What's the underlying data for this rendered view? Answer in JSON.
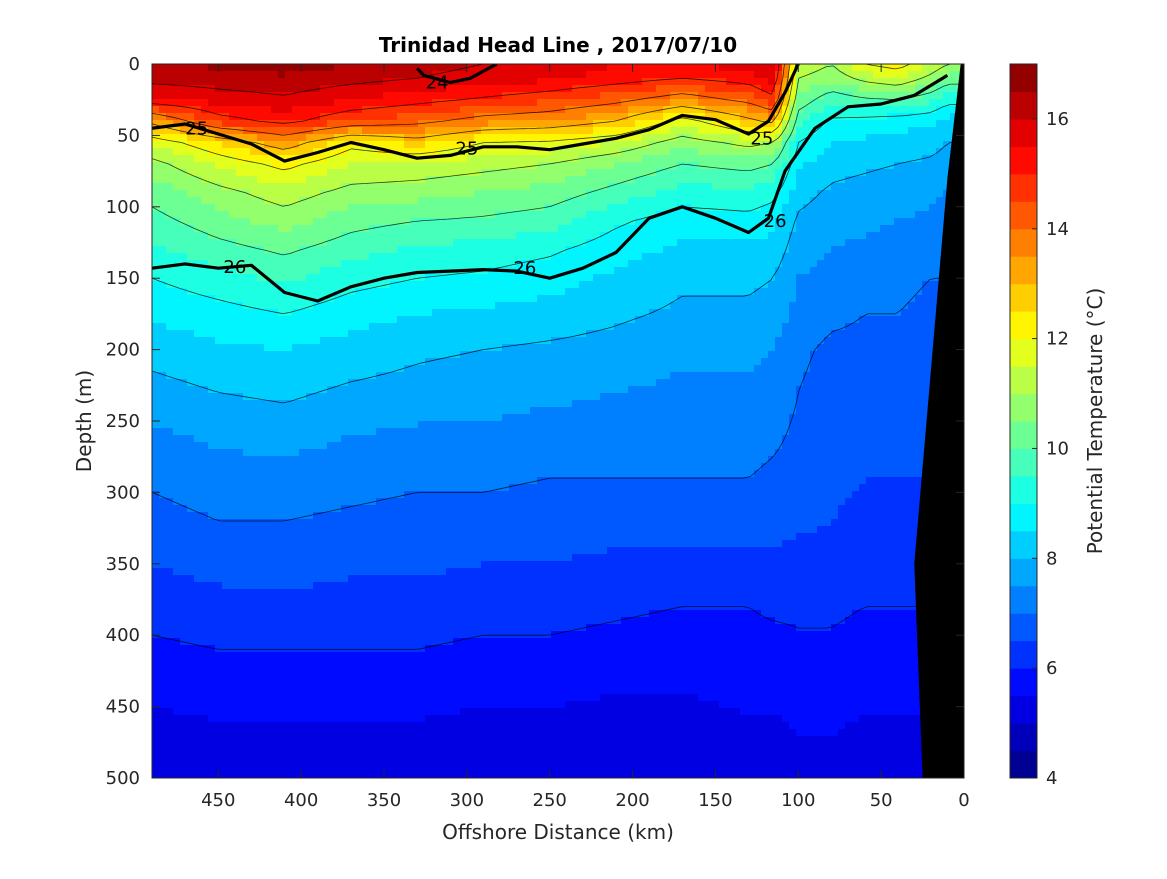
{
  "chart_data": {
    "type": "contourf",
    "title": "Trinidad Head Line , 2017/07/10",
    "xlabel": "Offshore Distance (km)",
    "ylabel": "Depth (m)",
    "colorbar_label": "Potential Temperature (°C)",
    "xlim": [
      490,
      0
    ],
    "ylim": [
      0,
      500
    ],
    "x_reversed": true,
    "y_reversed": true,
    "x_ticks": [
      450,
      400,
      350,
      300,
      250,
      200,
      150,
      100,
      50,
      0
    ],
    "x_tick_labels": [
      "450",
      "400",
      "350",
      "300",
      "250",
      "200",
      "150",
      "100",
      "50",
      "0"
    ],
    "y_ticks": [
      0,
      50,
      100,
      150,
      200,
      250,
      300,
      350,
      400,
      450,
      500
    ],
    "y_tick_labels": [
      "0",
      "50",
      "100",
      "150",
      "200",
      "250",
      "300",
      "350",
      "400",
      "450",
      "500"
    ],
    "colorbar_ticks": [
      4,
      6,
      8,
      10,
      12,
      14,
      16
    ],
    "colorbar_tick_labels": [
      "4",
      "6",
      "8",
      "10",
      "12",
      "14",
      "16"
    ],
    "colorbar_range": [
      4,
      17
    ],
    "colormap": "jet",
    "contour_step": 0.5,
    "x": [
      490,
      450,
      410,
      370,
      330,
      290,
      250,
      210,
      170,
      130,
      115,
      100,
      80,
      60,
      40,
      20,
      10
    ],
    "depths": [
      0,
      10,
      25,
      40,
      55,
      70,
      90,
      110,
      130,
      150,
      175,
      200,
      230,
      260,
      290,
      320,
      350,
      380,
      410,
      440,
      470,
      500
    ],
    "temperature": [
      [
        16.4,
        16.6,
        16.8,
        16.5,
        16.2,
        16.0,
        15.8,
        15.5,
        15.3,
        15.8,
        16.0,
        11.5,
        11.0,
        12.0,
        12.3,
        11.5,
        11.0
      ],
      [
        16.2,
        16.3,
        16.4,
        16.2,
        16.0,
        15.8,
        15.6,
        15.3,
        15.0,
        15.3,
        15.8,
        11.0,
        10.6,
        11.2,
        11.5,
        10.8,
        10.3
      ],
      [
        15.4,
        15.7,
        15.9,
        15.5,
        15.2,
        14.9,
        14.6,
        14.2,
        13.6,
        14.2,
        14.8,
        10.4,
        9.6,
        9.9,
        10.0,
        9.6,
        9.2
      ],
      [
        13.2,
        14.7,
        15.2,
        14.5,
        14.2,
        13.7,
        13.5,
        13.0,
        11.7,
        12.8,
        13.2,
        9.6,
        8.9,
        8.8,
        8.7,
        8.6,
        8.3
      ],
      [
        11.6,
        12.5,
        13.4,
        12.2,
        12.7,
        12.0,
        11.9,
        11.5,
        10.7,
        11.2,
        11.0,
        9.0,
        8.5,
        8.4,
        8.3,
        8.2,
        8.0
      ],
      [
        10.8,
        11.6,
        12.2,
        11.5,
        11.4,
        11.2,
        11.0,
        10.5,
        10.0,
        10.2,
        10.0,
        8.6,
        8.2,
        8.1,
        8.0,
        7.9,
        7.8
      ],
      [
        10.2,
        10.8,
        11.3,
        10.8,
        10.7,
        10.5,
        10.3,
        9.8,
        9.3,
        9.4,
        9.2,
        8.2,
        7.9,
        7.8,
        7.7,
        7.6,
        7.5
      ],
      [
        9.8,
        10.3,
        10.7,
        10.2,
        10.0,
        9.9,
        9.7,
        9.1,
        8.7,
        8.8,
        8.6,
        7.9,
        7.7,
        7.6,
        7.5,
        7.4,
        7.3
      ],
      [
        9.4,
        9.8,
        10.1,
        9.7,
        9.4,
        9.3,
        9.1,
        8.7,
        8.4,
        8.4,
        8.3,
        7.7,
        7.5,
        7.4,
        7.3,
        7.2,
        7.1
      ],
      [
        9.0,
        9.3,
        9.6,
        9.2,
        9.0,
        8.9,
        8.7,
        8.4,
        8.1,
        8.1,
        8.0,
        7.5,
        7.3,
        7.2,
        7.1,
        7.0,
        7.0
      ],
      [
        8.6,
        8.8,
        9.0,
        8.7,
        8.5,
        8.4,
        8.3,
        8.1,
        7.9,
        7.9,
        7.8,
        7.3,
        7.1,
        7.0,
        7.0,
        6.9,
        6.9
      ],
      [
        8.2,
        8.4,
        8.5,
        8.3,
        8.1,
        8.0,
        7.9,
        7.8,
        7.6,
        7.6,
        7.5,
        7.1,
        6.9,
        6.9,
        6.8,
        6.8,
        6.8
      ],
      [
        7.8,
        8.0,
        8.1,
        7.9,
        7.8,
        7.7,
        7.6,
        7.5,
        7.4,
        7.4,
        7.3,
        7.0,
        6.8,
        6.7,
        6.7,
        6.7,
        6.7
      ],
      [
        7.4,
        7.6,
        7.7,
        7.5,
        7.4,
        7.4,
        7.3,
        7.3,
        7.2,
        7.2,
        7.1,
        6.9,
        6.7,
        6.6,
        6.6,
        6.6,
        6.6
      ],
      [
        7.1,
        7.3,
        7.3,
        7.2,
        7.1,
        7.1,
        7.0,
        7.0,
        7.0,
        7.0,
        6.9,
        6.8,
        6.6,
        6.5,
        6.5,
        6.5,
        6.5
      ],
      [
        6.8,
        7.0,
        7.0,
        6.9,
        6.8,
        6.8,
        6.7,
        6.7,
        6.7,
        6.7,
        6.7,
        6.6,
        6.5,
        6.4,
        6.4,
        6.4,
        6.4
      ],
      [
        6.5,
        6.7,
        6.7,
        6.6,
        6.6,
        6.5,
        6.5,
        6.4,
        6.4,
        6.4,
        6.4,
        6.3,
        6.3,
        6.2,
        6.2,
        6.2,
        6.2
      ],
      [
        6.2,
        6.3,
        6.4,
        6.3,
        6.3,
        6.2,
        6.2,
        6.1,
        6.0,
        6.0,
        6.1,
        6.1,
        6.1,
        6.0,
        6.0,
        6.0,
        6.0
      ],
      [
        5.9,
        6.0,
        6.0,
        6.0,
        6.0,
        5.9,
        5.9,
        5.8,
        5.7,
        5.8,
        5.8,
        5.9,
        5.9,
        5.8,
        5.8,
        5.8,
        5.8
      ],
      [
        5.6,
        5.7,
        5.7,
        5.7,
        5.7,
        5.6,
        5.6,
        5.5,
        5.5,
        5.6,
        5.6,
        5.7,
        5.7,
        5.6,
        5.6,
        5.6,
        5.6
      ],
      [
        5.3,
        5.4,
        5.4,
        5.4,
        5.4,
        5.3,
        5.3,
        5.3,
        5.3,
        5.4,
        5.4,
        5.5,
        5.5,
        5.4,
        5.4,
        5.4,
        5.4
      ],
      [
        5.0,
        5.1,
        5.1,
        5.1,
        5.1,
        5.0,
        5.1,
        5.1,
        5.1,
        5.2,
        5.2,
        5.3,
        5.3,
        5.2,
        5.2,
        5.2,
        5.2
      ]
    ],
    "density_contours": [
      {
        "label": "24",
        "points": [
          [
            330,
            3
          ],
          [
            326,
            8
          ],
          [
            310,
            13
          ],
          [
            298,
            10
          ],
          [
            282,
            0
          ]
        ],
        "label_at": [
          318,
          13
        ]
      },
      {
        "label": "25",
        "points": [
          [
            490,
            45
          ],
          [
            470,
            42
          ],
          [
            450,
            49
          ],
          [
            430,
            56
          ],
          [
            410,
            68
          ],
          [
            390,
            62
          ],
          [
            370,
            55
          ],
          [
            350,
            60
          ],
          [
            330,
            66
          ],
          [
            310,
            64
          ],
          [
            290,
            58
          ],
          [
            270,
            58
          ],
          [
            250,
            60
          ],
          [
            230,
            56
          ],
          [
            210,
            52
          ],
          [
            190,
            46
          ],
          [
            170,
            36
          ],
          [
            150,
            39
          ],
          [
            130,
            49
          ],
          [
            118,
            40
          ],
          [
            108,
            20
          ],
          [
            100,
            0
          ]
        ],
        "label_at": [
          300,
          59
        ]
      },
      {
        "label": "26",
        "points": [
          [
            490,
            143
          ],
          [
            470,
            140
          ],
          [
            450,
            143
          ],
          [
            430,
            141
          ],
          [
            410,
            160
          ],
          [
            390,
            166
          ],
          [
            370,
            156
          ],
          [
            350,
            150
          ],
          [
            330,
            146
          ],
          [
            310,
            145
          ],
          [
            290,
            144
          ],
          [
            270,
            145
          ],
          [
            250,
            150
          ],
          [
            230,
            143
          ],
          [
            210,
            132
          ],
          [
            190,
            108
          ],
          [
            170,
            100
          ],
          [
            150,
            108
          ],
          [
            130,
            118
          ],
          [
            118,
            108
          ],
          [
            108,
            75
          ],
          [
            90,
            45
          ],
          [
            70,
            30
          ],
          [
            50,
            28
          ],
          [
            30,
            22
          ],
          [
            10,
            8
          ]
        ],
        "label_at": [
          265,
          143
        ]
      }
    ],
    "density_labels_extra": [
      {
        "label": "25",
        "at": [
          463,
          45
        ]
      },
      {
        "label": "25",
        "at": [
          122,
          52
        ]
      },
      {
        "label": "26",
        "at": [
          440,
          142
        ]
      },
      {
        "label": "26",
        "at": [
          114,
          110
        ]
      }
    ],
    "bathymetry": [
      [
        0,
        0
      ],
      [
        0,
        500
      ],
      [
        25,
        500
      ],
      [
        30,
        350
      ],
      [
        10,
        80
      ],
      [
        2,
        0
      ]
    ]
  }
}
